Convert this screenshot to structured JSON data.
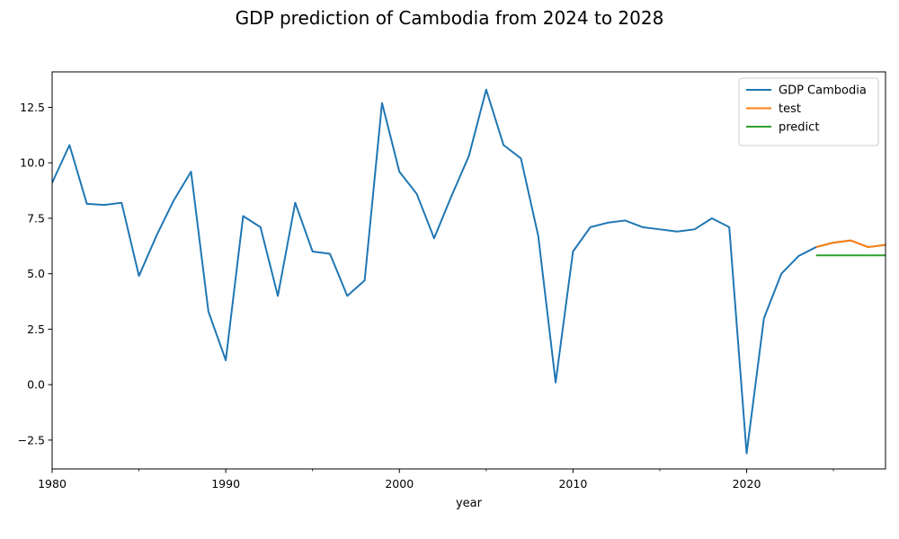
{
  "figure": {
    "title": "GDP prediction of Cambodia from 2024 to 2028"
  },
  "chart_data": {
    "type": "line",
    "title": "GDP prediction of Cambodia from 2024 to 2028",
    "xlabel": "year",
    "ylabel": "",
    "xlim": [
      1980,
      2028
    ],
    "ylim": [
      -3.8,
      14.1
    ],
    "x_major_ticks": [
      1980,
      1990,
      2000,
      2010,
      2020
    ],
    "x_minor_ticks": [
      1985,
      1995,
      2005,
      2015,
      2025
    ],
    "y_ticks": [
      -2.5,
      0.0,
      2.5,
      5.0,
      7.5,
      10.0,
      12.5
    ],
    "x_tick_labels": [
      "1980",
      "1990",
      "2000",
      "2010",
      "2020"
    ],
    "y_tick_labels": [
      "−2.5",
      "0.0",
      "2.5",
      "5.0",
      "7.5",
      "10.0",
      "12.5"
    ],
    "legend_position": "top-right",
    "grid": false,
    "series": [
      {
        "name": "GDP Cambodia",
        "color": "#1f77b4",
        "x": [
          1980,
          1981,
          1982,
          1983,
          1984,
          1985,
          1986,
          1987,
          1988,
          1989,
          1990,
          1991,
          1992,
          1993,
          1994,
          1995,
          1996,
          1997,
          1998,
          1999,
          2000,
          2001,
          2002,
          2003,
          2004,
          2005,
          2006,
          2007,
          2008,
          2009,
          2010,
          2011,
          2012,
          2013,
          2014,
          2015,
          2016,
          2017,
          2018,
          2019,
          2020,
          2021,
          2022,
          2023,
          2024,
          2025,
          2026,
          2027,
          2028
        ],
        "values": [
          9.1,
          10.8,
          8.15,
          8.1,
          8.2,
          4.9,
          6.7,
          8.3,
          9.6,
          3.3,
          1.1,
          7.6,
          7.1,
          4.0,
          8.2,
          6.0,
          5.9,
          4.0,
          4.7,
          12.7,
          9.6,
          8.6,
          6.6,
          8.5,
          10.3,
          13.3,
          10.8,
          10.2,
          6.7,
          0.1,
          6.0,
          7.1,
          7.3,
          7.4,
          7.1,
          7.0,
          6.9,
          7.0,
          7.5,
          7.1,
          -3.1,
          3.0,
          5.0,
          5.8,
          6.2,
          6.4,
          6.5,
          6.2,
          6.3
        ]
      },
      {
        "name": "test",
        "color": "#ff7f0e",
        "x": [
          2024,
          2025,
          2026,
          2027,
          2028
        ],
        "values": [
          6.2,
          6.4,
          6.5,
          6.2,
          6.3
        ]
      },
      {
        "name": "predict",
        "color": "#2ca02c",
        "x": [
          2024,
          2025,
          2026,
          2027,
          2028
        ],
        "values": [
          5.83,
          5.83,
          5.83,
          5.83,
          5.83
        ]
      }
    ]
  }
}
